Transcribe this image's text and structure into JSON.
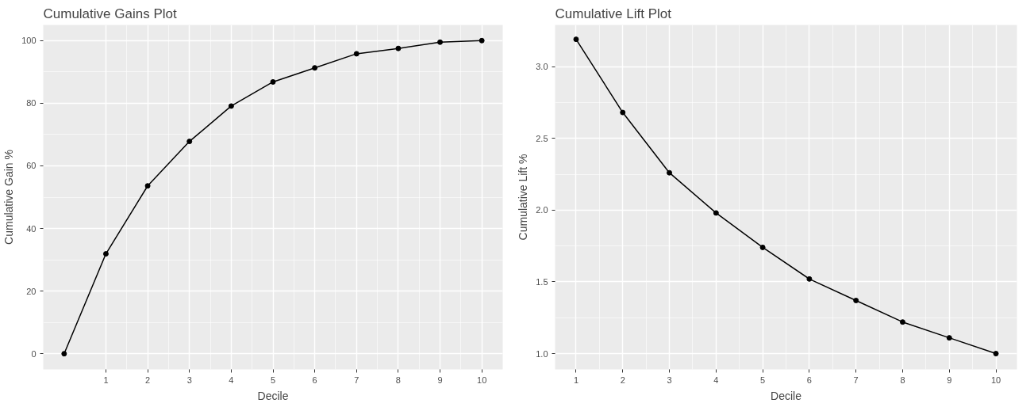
{
  "chart_data": [
    {
      "type": "line",
      "title": "Cumulative Gains Plot",
      "xlabel": "Decile",
      "ylabel": "Cumulative Gain %",
      "x": [
        0,
        1,
        2,
        3,
        4,
        5,
        6,
        7,
        8,
        9,
        10
      ],
      "series": [
        {
          "color": "#000000",
          "values": [
            0,
            31.9,
            53.6,
            67.8,
            79.1,
            86.8,
            91.3,
            95.8,
            97.5,
            99.5,
            100
          ]
        }
      ],
      "xlim": [
        -0.5,
        10.5
      ],
      "xticks": [
        1,
        2,
        3,
        4,
        5,
        6,
        7,
        8,
        9,
        10
      ],
      "ylim": [
        -5,
        105
      ],
      "yticks": [
        0,
        20,
        40,
        60,
        80,
        100
      ],
      "grid": true,
      "marker": "circle",
      "line_style": "solid"
    },
    {
      "type": "line",
      "title": "Cumulative Lift Plot",
      "xlabel": "Decile",
      "ylabel": "Cumulative Lift %",
      "x": [
        1,
        2,
        3,
        4,
        5,
        6,
        7,
        8,
        9,
        10
      ],
      "series": [
        {
          "color": "#000000",
          "values": [
            3.19,
            2.68,
            2.26,
            1.98,
            1.74,
            1.52,
            1.37,
            1.22,
            1.11,
            1.0
          ]
        }
      ],
      "xlim": [
        0.55,
        10.45
      ],
      "xticks": [
        1,
        2,
        3,
        4,
        5,
        6,
        7,
        8,
        9,
        10
      ],
      "ylim": [
        0.89,
        3.29
      ],
      "yticks": [
        {
          "value": 1,
          "label": "1.0"
        },
        {
          "value": 1.5,
          "label": "1.5"
        },
        {
          "value": 2,
          "label": "2.0"
        },
        {
          "value": 2.5,
          "label": "2.5"
        },
        {
          "value": 3,
          "label": "3.0"
        }
      ],
      "grid": true,
      "marker": "circle",
      "line_style": "solid"
    }
  ]
}
